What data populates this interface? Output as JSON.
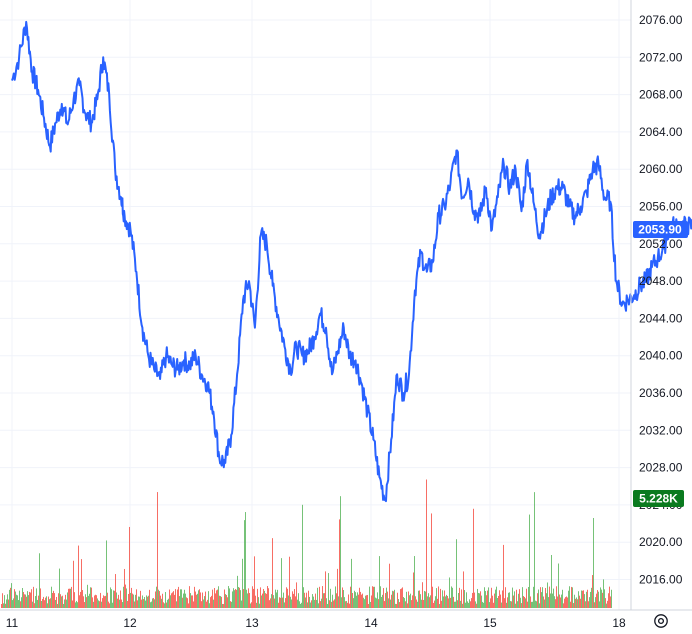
{
  "chart_data": {
    "type": "line",
    "title": "",
    "xlabel": "",
    "ylabel": "",
    "x_ticks": [
      "11",
      "12",
      "13",
      "14",
      "15",
      "18"
    ],
    "y_ticks": [
      "2016.00",
      "2020.00",
      "2024.00",
      "2028.00",
      "2032.00",
      "2036.00",
      "2040.00",
      "2044.00",
      "2048.00",
      "2052.00",
      "2056.00",
      "2060.00",
      "2064.00",
      "2068.00",
      "2072.00",
      "2076.00"
    ],
    "ylim": [
      2012.9,
      2077.4
    ],
    "grid": true,
    "series": [
      {
        "kind": "price-line",
        "color": "#2962ff",
        "x": [
          0,
          0.06,
          0.12,
          0.17,
          0.22,
          0.27,
          0.32,
          0.37,
          0.42,
          0.47,
          0.52,
          0.57,
          0.62,
          0.67,
          0.72,
          0.77,
          0.82,
          0.87,
          0.92,
          0.95,
          1.0,
          1.05,
          1.1,
          1.15,
          1.2,
          1.25,
          1.3,
          1.35,
          1.4,
          1.45,
          1.5,
          1.55,
          1.6,
          1.65,
          1.7,
          1.75,
          1.8,
          1.85,
          1.9,
          1.95,
          2.0,
          2.05,
          2.1,
          2.15,
          2.2,
          2.25,
          2.3,
          2.35,
          2.4,
          2.45,
          2.5,
          2.55,
          2.6,
          2.65,
          2.7,
          2.75,
          2.8,
          2.85,
          2.9,
          2.95,
          3.0,
          3.05,
          3.1,
          3.15,
          3.2,
          3.25,
          3.3,
          3.35,
          3.4,
          3.45,
          3.5,
          3.55,
          3.6,
          3.65,
          3.7,
          3.75,
          3.8,
          3.85,
          3.9,
          3.95,
          4.0,
          4.05,
          4.1,
          4.15,
          4.2,
          4.25,
          4.3,
          4.35,
          4.4,
          4.45,
          4.5,
          4.55,
          4.6,
          4.65,
          4.7,
          4.75,
          4.8,
          4.85,
          4.9,
          4.95,
          5.0,
          5.05,
          5.1,
          5.15,
          5.2,
          5.25,
          5.3,
          5.35,
          5.4,
          5.45,
          5.5,
          5.55,
          5.6,
          5.65,
          5.7,
          5.75,
          5.8,
          5.85,
          5.9,
          5.95,
          6.0,
          6.03
        ],
        "y": [
          2069.5,
          2072.0,
          2075.8,
          2070.5,
          2068.5,
          2065.5,
          2062.5,
          2065.0,
          2067.0,
          2064.8,
          2067.5,
          2069.0,
          2066.0,
          2065.0,
          2067.5,
          2072.0,
          2068.0,
          2060.0,
          2057.0,
          2055.0,
          2053.5,
          2049.0,
          2043.0,
          2040.0,
          2038.5,
          2037.5,
          2040.0,
          2039.0,
          2038.5,
          2039.5,
          2039.0,
          2040.0,
          2038.0,
          2037.0,
          2034.0,
          2029.0,
          2028.5,
          2031.5,
          2038.0,
          2046.0,
          2048.0,
          2043.0,
          2053.0,
          2052.0,
          2047.5,
          2044.0,
          2041.0,
          2038.5,
          2041.0,
          2040.0,
          2040.5,
          2042.0,
          2044.5,
          2043.0,
          2038.0,
          2040.5,
          2043.0,
          2040.0,
          2039.5,
          2037.0,
          2034.0,
          2031.0,
          2027.0,
          2024.5,
          2031.0,
          2038.0,
          2036.0,
          2038.0,
          2047.0,
          2051.0,
          2049.0,
          2050.0,
          2055.0,
          2056.0,
          2058.5,
          2062.0,
          2057.0,
          2059.0,
          2055.5,
          2055.0,
          2058.0,
          2053.5,
          2057.0,
          2060.5,
          2058.0,
          2060.0,
          2055.5,
          2061.0,
          2056.5,
          2053.0,
          2055.0,
          2057.0,
          2058.0,
          2058.0,
          2056.0,
          2055.0,
          2056.0,
          2057.5,
          2060.0,
          2060.5,
          2057.0,
          2056.5,
          2048.0,
          2045.5,
          2046.0,
          2046.5,
          2047.5,
          2048.0,
          2049.5,
          2050.5,
          2051.5,
          2053.9,
          2053.9,
          2053.9,
          2053.9,
          2053.9,
          2053.9,
          2053.9,
          2053.9,
          2053.9,
          2053.9,
          2053.9
        ],
        "last_price_label": "2053.90",
        "last_price_value": 2053.9
      },
      {
        "kind": "volume",
        "colors": {
          "up": "#4caf50",
          "down": "#f44336"
        },
        "last_volume_label": "5.228K",
        "last_volume_color": "#0a7a1f"
      }
    ]
  }
}
